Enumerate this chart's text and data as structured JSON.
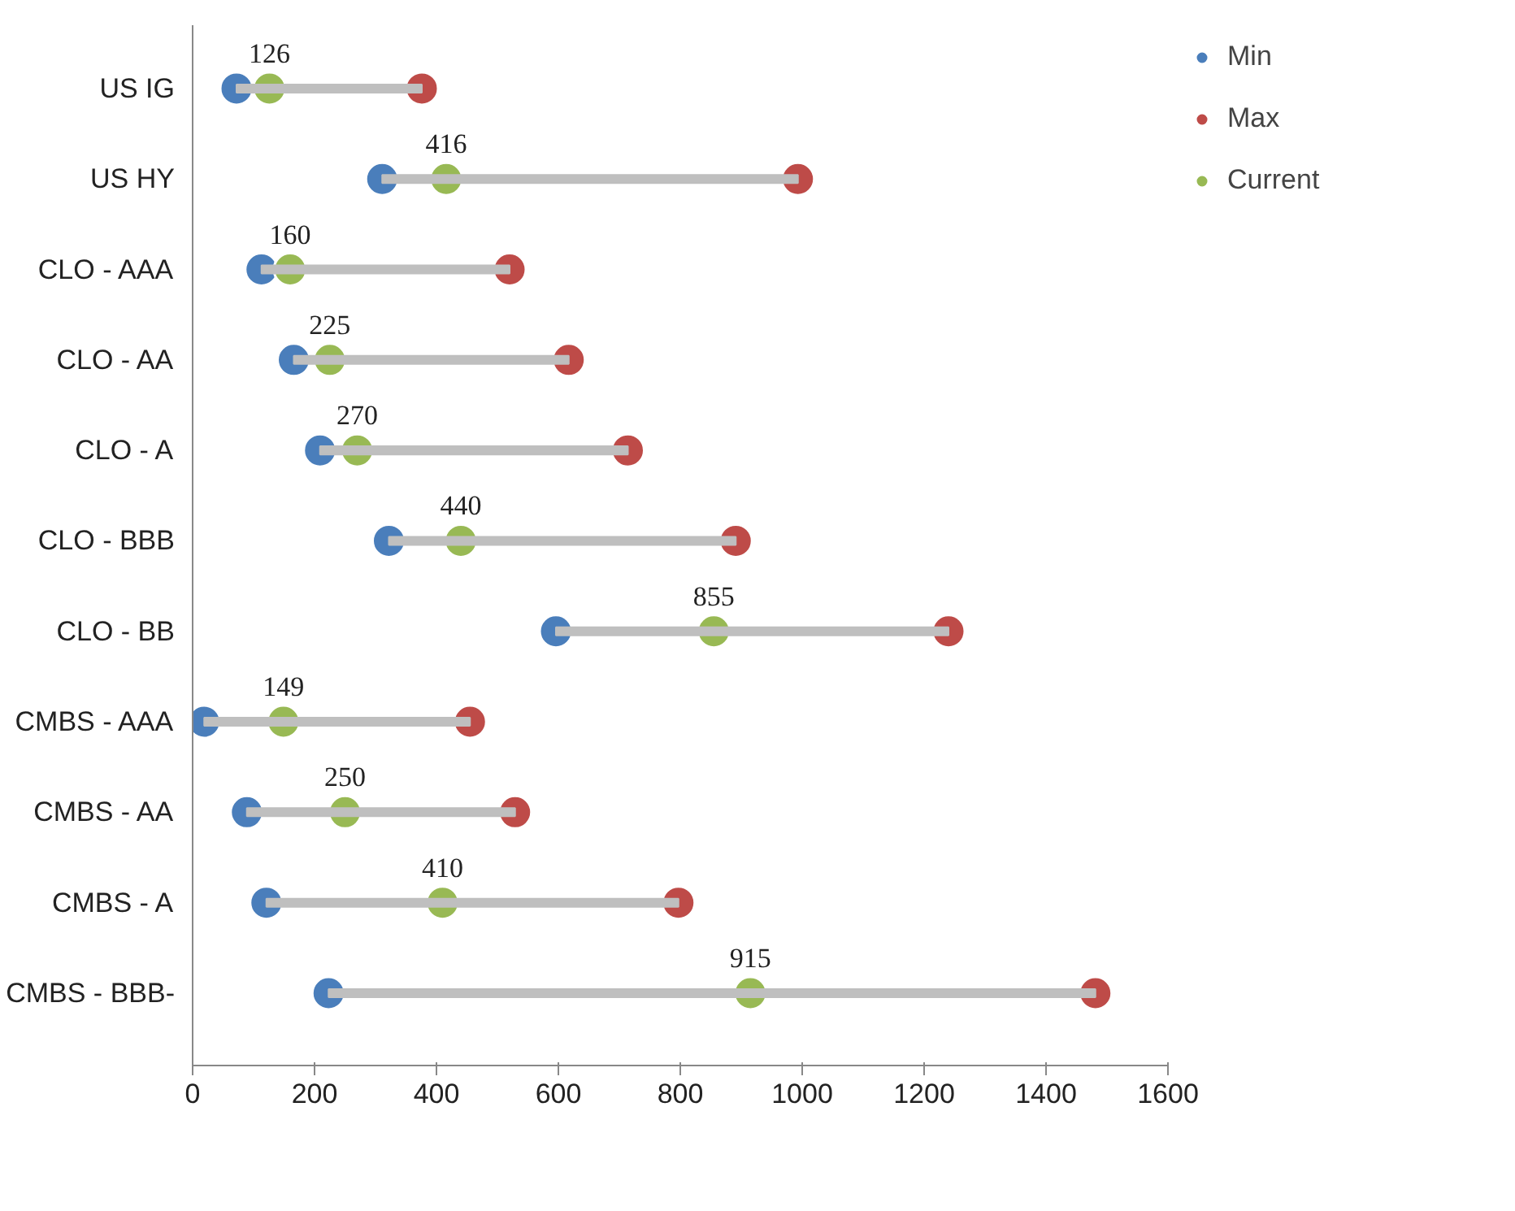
{
  "chart_data": {
    "type": "scatter",
    "orientation": "horizontal",
    "categories": [
      "US IG",
      "US HY",
      "CLO - AAA",
      "CLO - AA",
      "CLO - A",
      "CLO - BBB",
      "CLO - BB",
      "CMBS - AAA",
      "CMBS - AA",
      "CMBS - A",
      "CMBS - BBB-"
    ],
    "xlim": [
      0,
      1600
    ],
    "xticks": [
      0,
      200,
      400,
      600,
      800,
      1000,
      1200,
      1400,
      1600
    ],
    "grid": false,
    "legend": "right",
    "marker": "circle",
    "series": [
      {
        "type": "bar",
        "color": "#bfbfbf",
        "base": [
          72,
          311,
          113,
          166,
          209,
          322,
          596,
          19,
          89,
          121,
          223
        ],
        "values": [
          304,
          682,
          407,
          451,
          505,
          569,
          644,
          436,
          440,
          676,
          1258
        ]
      },
      {
        "name": "Min",
        "color": "#4a7ebb",
        "values": [
          72,
          311,
          113,
          166,
          209,
          322,
          596,
          19,
          89,
          121,
          223
        ]
      },
      {
        "name": "Max",
        "color": "#be4b48",
        "values": [
          376,
          993,
          520,
          617,
          714,
          891,
          1240,
          455,
          529,
          797,
          1481
        ]
      },
      {
        "name": "Current",
        "color": "#98b954",
        "values": [
          126,
          416,
          160,
          225,
          270,
          440,
          855,
          149,
          250,
          410,
          915
        ],
        "value_labels": [
          "126",
          "416",
          "160",
          "225",
          "270",
          "440",
          "855",
          "149",
          "250",
          "410",
          "915"
        ]
      }
    ]
  }
}
